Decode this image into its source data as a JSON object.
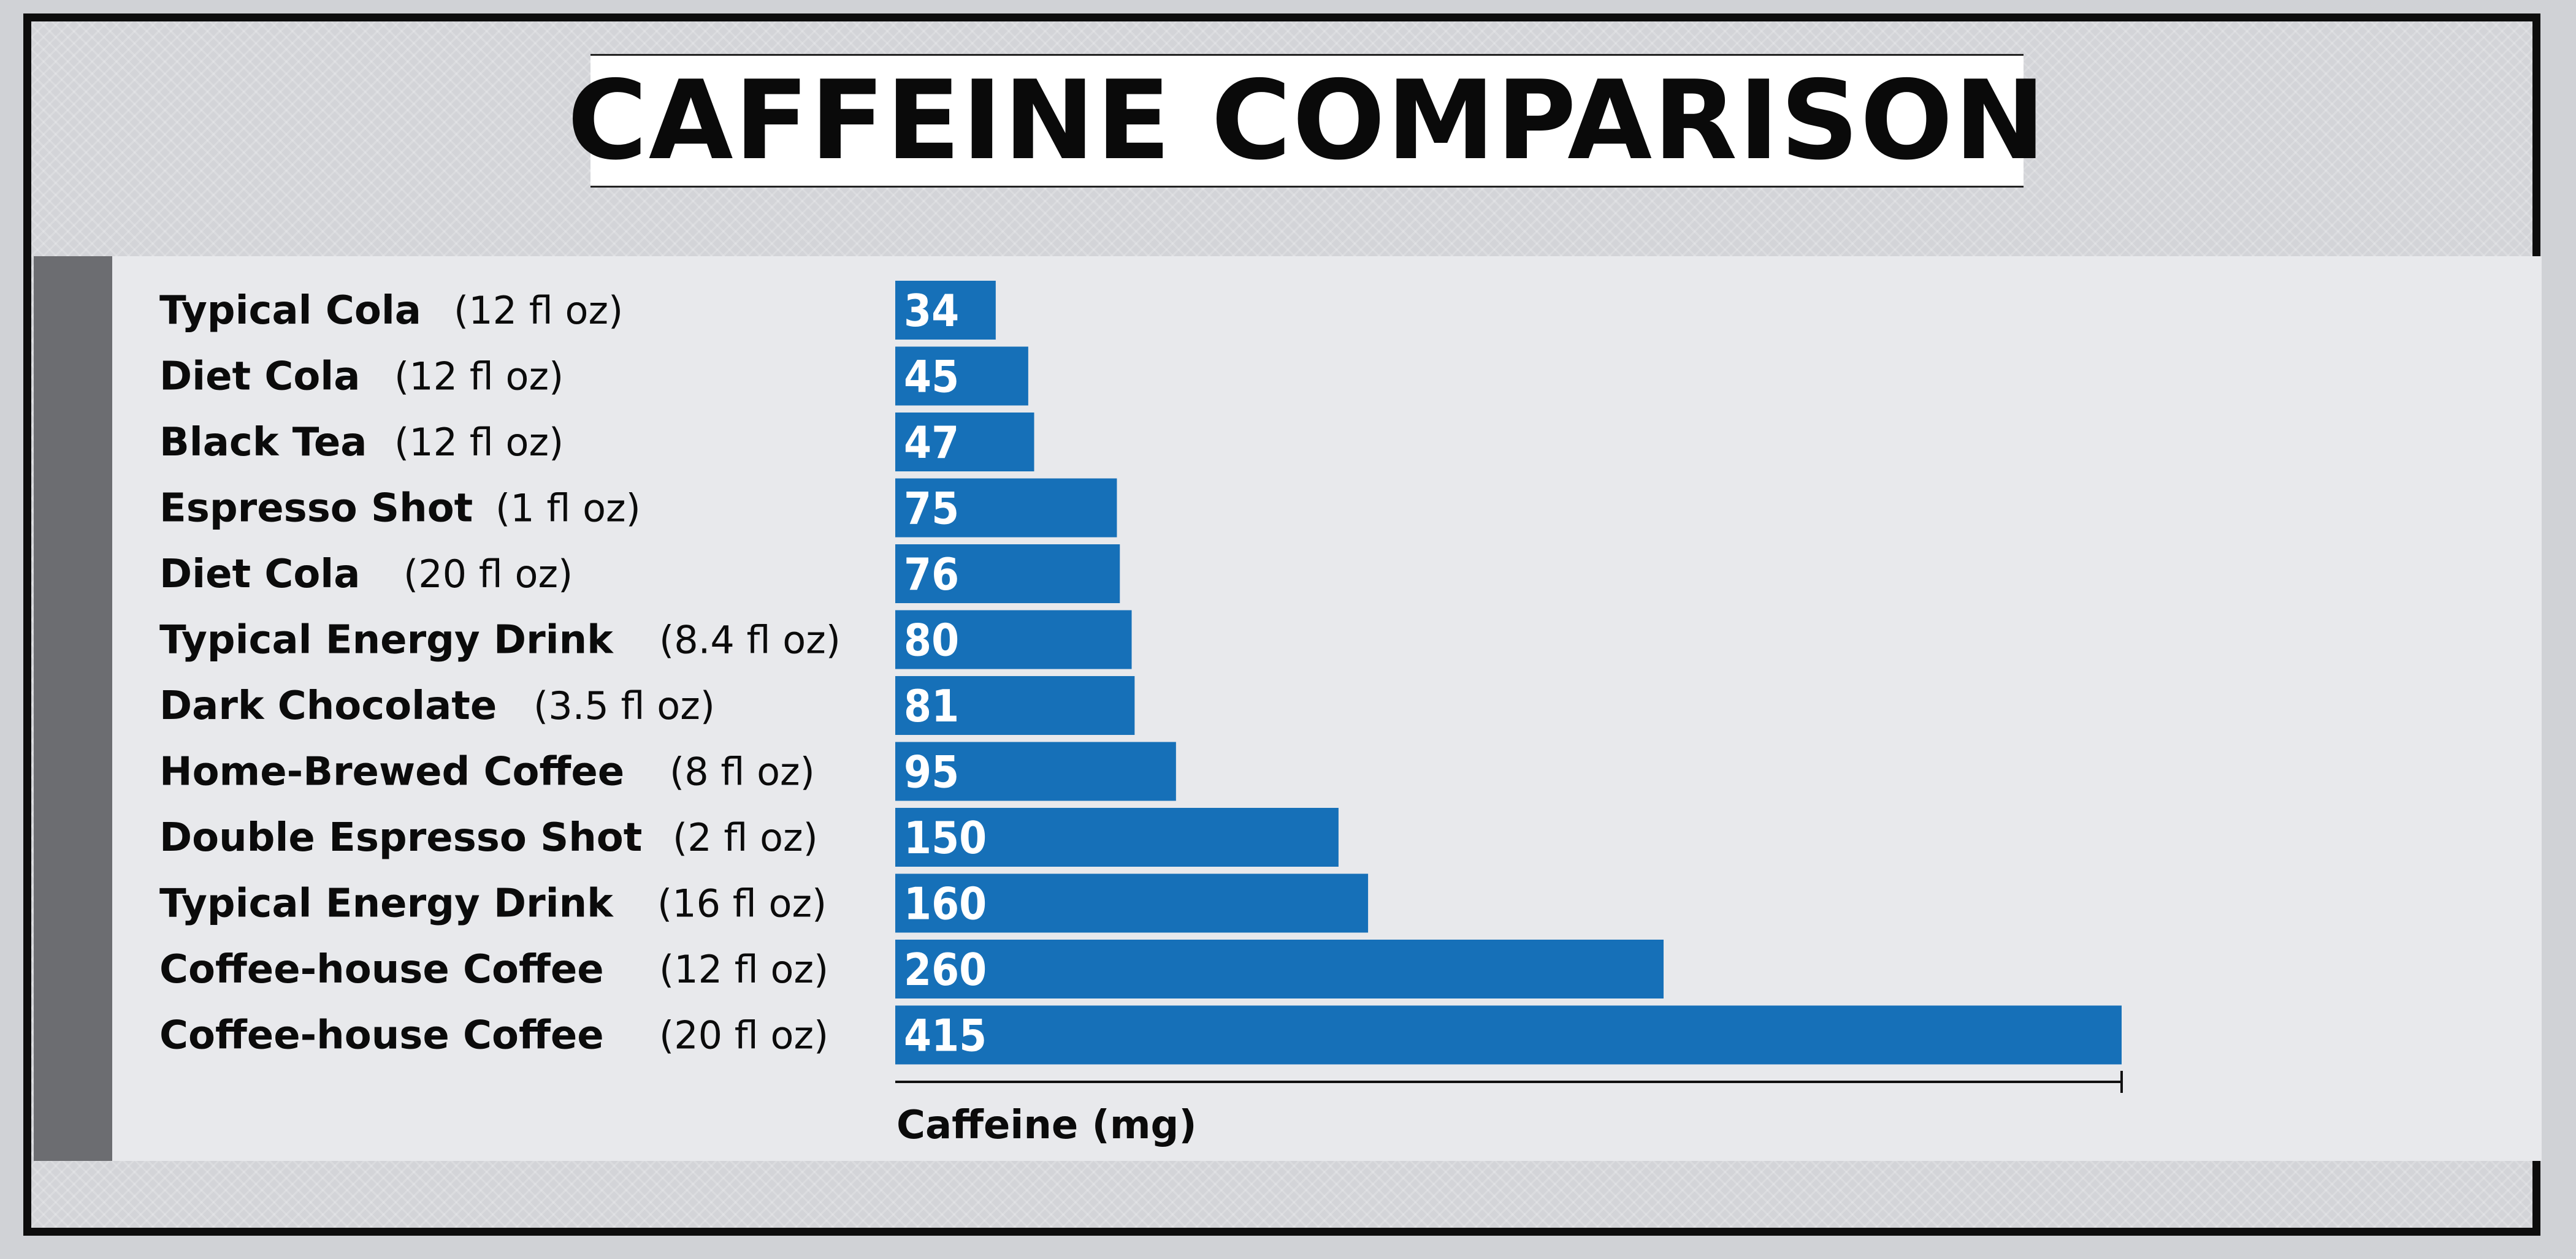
{
  "chart_data": {
    "type": "bar",
    "orientation": "horizontal",
    "title": "CAFFEINE COMPARISON",
    "xlabel": "Caffeine (mg)",
    "ylabel": "",
    "xlim": [
      0,
      415
    ],
    "grid": false,
    "bar_color": "#1670b8",
    "categories": [
      {
        "name": "Typical Cola",
        "size": "(12 fl oz)"
      },
      {
        "name": "Diet Cola",
        "size": "(12 fl oz)"
      },
      {
        "name": "Black Tea",
        "size": "(12 fl oz)"
      },
      {
        "name": "Espresso Shot",
        "size": "(1 fl oz)"
      },
      {
        "name": "Diet Cola",
        "size": "(20 fl oz)"
      },
      {
        "name": "Typical Energy Drink",
        "size": "(8.4 fl oz)"
      },
      {
        "name": "Dark Chocolate",
        "size": "(3.5 fl oz)"
      },
      {
        "name": "Home-Brewed Coffee",
        "size": "(8 fl oz)"
      },
      {
        "name": "Double Espresso Shot",
        "size": "(2 fl oz)"
      },
      {
        "name": "Typical Energy Drink",
        "size": "(16 fl oz)"
      },
      {
        "name": "Coffee-house Coffee",
        "size": "(12 fl oz)"
      },
      {
        "name": "Coffee-house Coffee",
        "size": "(20 fl oz)"
      }
    ],
    "values": [
      34,
      45,
      47,
      75,
      76,
      80,
      81,
      95,
      150,
      160,
      260,
      415
    ]
  }
}
